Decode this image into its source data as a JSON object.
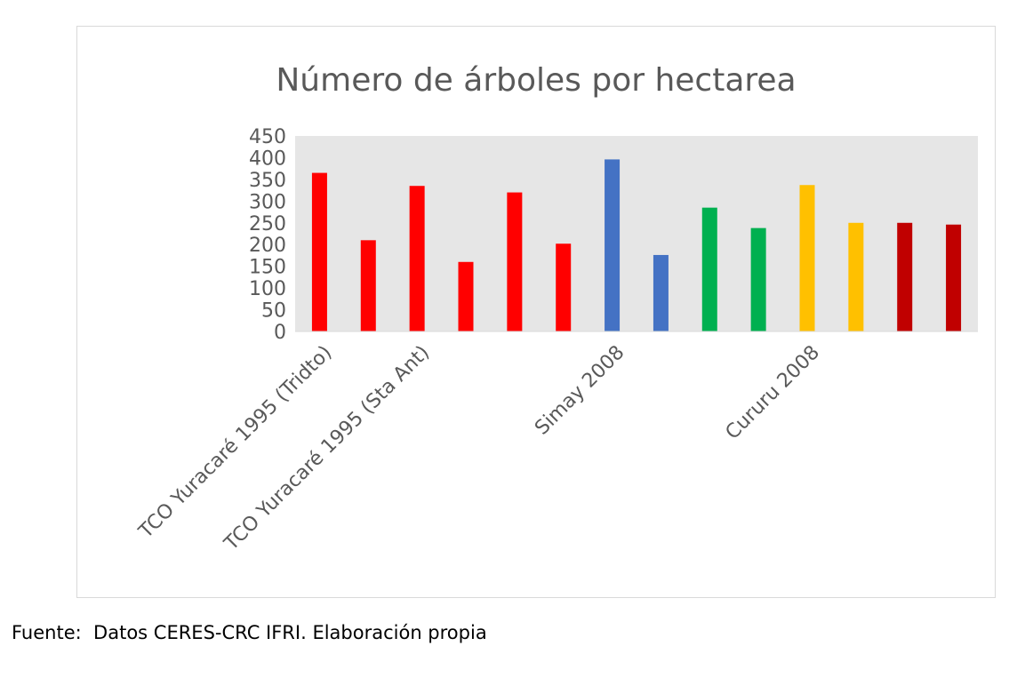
{
  "chart_data": {
    "type": "bar",
    "title": "Número de árboles por hectarea",
    "xlabel": "",
    "ylabel": "",
    "ylim": [
      0,
      450
    ],
    "yticks": [
      "450",
      "400",
      "350",
      "300",
      "250",
      "200",
      "150",
      "100",
      "50",
      "0"
    ],
    "ytick_values": [
      450,
      400,
      350,
      300,
      250,
      200,
      150,
      100,
      50,
      0
    ],
    "category_labels": [
      "TCO Yuracaré 1995 (Tridto)",
      "TCO Yuracaré 1995 (Sta Ant)",
      "Simay 2008",
      "Cururu 2008"
    ],
    "values": [
      365,
      210,
      335,
      160,
      320,
      202,
      396,
      176,
      285,
      238,
      337,
      250,
      250,
      246
    ],
    "bar_colors": [
      "#ff0000",
      "#ff0000",
      "#ff0000",
      "#ff0000",
      "#ff0000",
      "#ff0000",
      "#4472c4",
      "#4472c4",
      "#00b050",
      "#00b050",
      "#ffc000",
      "#ffc000",
      "#c00000",
      "#c00000"
    ],
    "plot_background": "#e6e6e6",
    "grid": false,
    "legend": "none"
  },
  "source_note": "Fuente:  Datos CERES-CRC IFRI. Elaboración propia"
}
